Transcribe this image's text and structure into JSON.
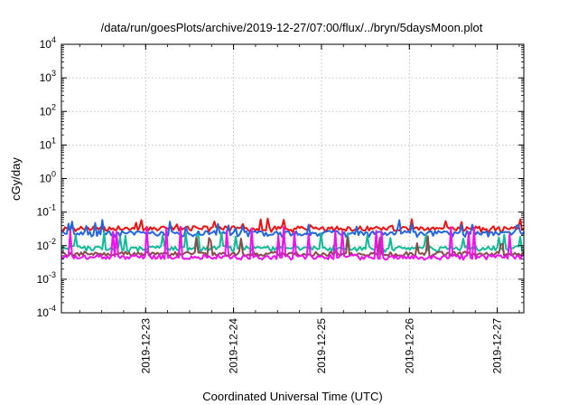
{
  "chart_data": {
    "type": "line",
    "title": "/data/run/goesPlots/archive/2019-12-27/07:00/flux/../bryn/5daysMoon.plot",
    "xlabel": "Coordinated Universal Time (UTC)",
    "ylabel": "cGy/day",
    "yscale": "log",
    "ylim_exponent": [
      -4,
      4
    ],
    "y_tick_base": "10",
    "y_tick_exponents": [
      "-4",
      "-3",
      "-2",
      "-1",
      "0",
      "1",
      "2",
      "3",
      "4"
    ],
    "xlim": [
      "2019-12-22T01:00",
      "2019-12-27T07:15"
    ],
    "x_ticks": [
      "2019-12-23",
      "2019-12-24",
      "2019-12-25",
      "2019-12-26",
      "2019-12-27"
    ],
    "grid": true,
    "legend": "none",
    "series": [
      {
        "color": "#ee1111",
        "level": 0.033,
        "low": 0.025,
        "spikes": 0.05
      },
      {
        "color": "#2266dd",
        "level": 0.024,
        "low": 0.018,
        "spikes": 0.045
      },
      {
        "color": "#11bb99",
        "level": 0.0085,
        "low": 0.0065,
        "spikes": 0.02
      },
      {
        "color": "#8a4a4a",
        "level": 0.0058,
        "low": 0.0048,
        "spikes": 0.015
      },
      {
        "color": "#ee11ee",
        "level": 0.0047,
        "low": 0.0038,
        "spikes": 0.028
      }
    ]
  }
}
